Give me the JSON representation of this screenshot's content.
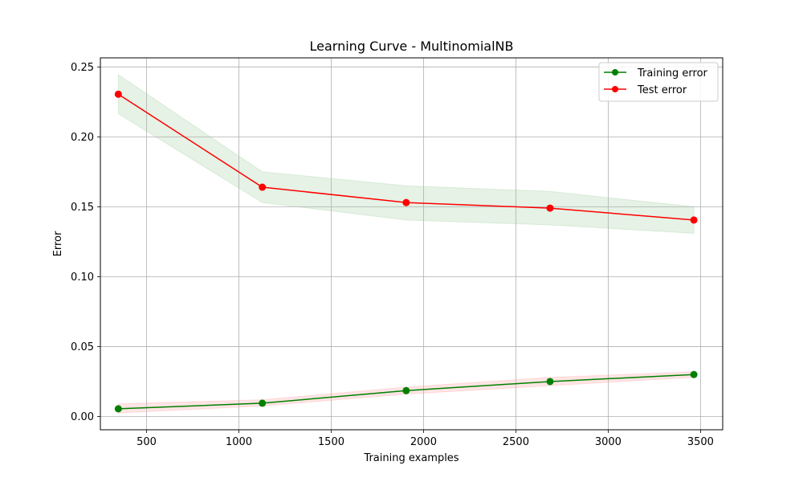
{
  "chart_data": {
    "type": "line",
    "title": "Learning Curve - MultinomialNB",
    "xlabel": "Training examples",
    "ylabel": "Error",
    "xlim": [
      250,
      3620
    ],
    "ylim": [
      -0.0095,
      0.2565
    ],
    "xticks": [
      500,
      1000,
      1500,
      2000,
      2500,
      3000,
      3500
    ],
    "yticks": [
      0.0,
      0.05,
      0.1,
      0.15,
      0.2,
      0.25
    ],
    "x_tick_labels": [
      "500",
      "1000",
      "1500",
      "2000",
      "2500",
      "3000",
      "3500"
    ],
    "y_tick_labels": [
      "0.00",
      "0.05",
      "0.10",
      "0.15",
      "0.20",
      "0.25"
    ],
    "grid": true,
    "legend_position": "upper right",
    "x": [
      347,
      1127,
      1906,
      2685,
      3464
    ],
    "series": [
      {
        "name": "Training error",
        "values": [
          0.0055,
          0.0095,
          0.0185,
          0.025,
          0.03
        ],
        "band_lower": [
          0.0025,
          0.0075,
          0.016,
          0.022,
          0.028
        ],
        "band_upper": [
          0.009,
          0.012,
          0.021,
          0.028,
          0.032
        ],
        "color": "#008000",
        "band_color": "#ff0000"
      },
      {
        "name": "Test error",
        "values": [
          0.2305,
          0.164,
          0.153,
          0.149,
          0.1405
        ],
        "band_lower": [
          0.2165,
          0.153,
          0.1405,
          0.137,
          0.131
        ],
        "band_upper": [
          0.2445,
          0.175,
          0.165,
          0.161,
          0.15
        ],
        "color": "#ff0000",
        "band_color": "#008000"
      }
    ]
  }
}
